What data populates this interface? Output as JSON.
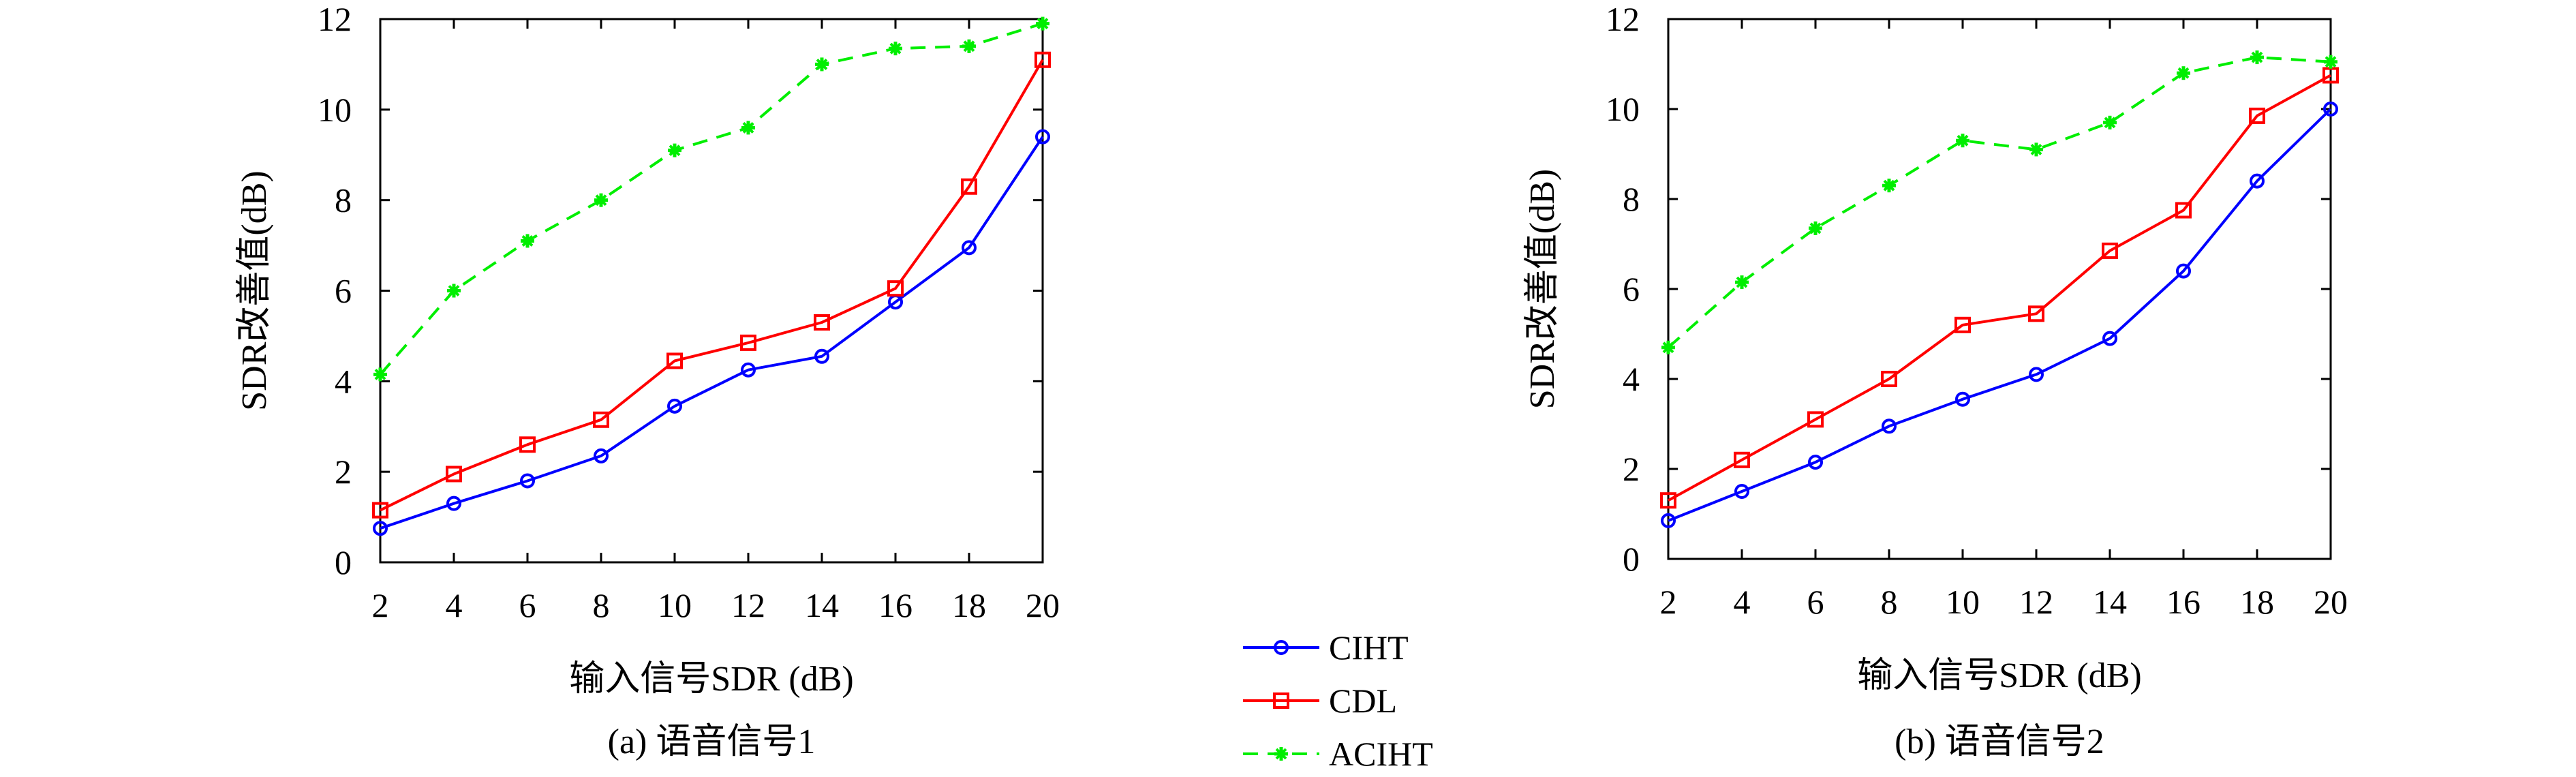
{
  "chart_data": [
    {
      "type": "line",
      "caption": "(a) 语音信号1",
      "xlabel": "输入信号SDR (dB)",
      "ylabel": "SDR改善值(dB)",
      "xlim": [
        2,
        20
      ],
      "ylim": [
        0,
        12
      ],
      "xticks": [
        2,
        4,
        6,
        8,
        10,
        12,
        14,
        16,
        18,
        20
      ],
      "yticks": [
        0,
        2,
        4,
        6,
        8,
        10,
        12
      ],
      "grid": false,
      "x": [
        2,
        4,
        6,
        8,
        10,
        12,
        14,
        16,
        18,
        20
      ],
      "series": [
        {
          "name": "CIHT",
          "color": "#0000ff",
          "marker": "circle",
          "dash": "solid",
          "values": [
            0.75,
            1.3,
            1.8,
            2.35,
            3.45,
            4.25,
            4.55,
            5.75,
            6.95,
            9.4
          ]
        },
        {
          "name": "CDL",
          "color": "#ff0000",
          "marker": "square",
          "dash": "solid",
          "values": [
            1.15,
            1.95,
            2.6,
            3.15,
            4.45,
            4.85,
            5.3,
            6.05,
            8.3,
            11.1
          ]
        },
        {
          "name": "ACIHT",
          "color": "#00ee00",
          "marker": "star",
          "dash": "dashed",
          "values": [
            4.15,
            6.0,
            7.1,
            8.0,
            9.1,
            9.6,
            11.0,
            11.35,
            11.4,
            11.9
          ]
        }
      ]
    },
    {
      "type": "line",
      "caption": "(b) 语音信号2",
      "xlabel": "输入信号SDR (dB)",
      "ylabel": "SDR改善值(dB)",
      "xlim": [
        2,
        20
      ],
      "ylim": [
        0,
        12
      ],
      "xticks": [
        2,
        4,
        6,
        8,
        10,
        12,
        14,
        16,
        18,
        20
      ],
      "yticks": [
        0,
        2,
        4,
        6,
        8,
        10,
        12
      ],
      "grid": false,
      "x": [
        2,
        4,
        6,
        8,
        10,
        12,
        14,
        16,
        18,
        20
      ],
      "series": [
        {
          "name": "CIHT",
          "color": "#0000ff",
          "marker": "circle",
          "dash": "solid",
          "values": [
            0.85,
            1.5,
            2.15,
            2.95,
            3.55,
            4.1,
            4.9,
            6.4,
            8.4,
            10.0
          ]
        },
        {
          "name": "CDL",
          "color": "#ff0000",
          "marker": "square",
          "dash": "solid",
          "values": [
            1.3,
            2.2,
            3.1,
            4.0,
            5.2,
            5.45,
            6.85,
            7.75,
            9.85,
            10.75
          ]
        },
        {
          "name": "ACIHT",
          "color": "#00ee00",
          "marker": "star",
          "dash": "dashed",
          "values": [
            4.7,
            6.15,
            7.35,
            8.3,
            9.3,
            9.1,
            9.7,
            10.8,
            11.15,
            11.05
          ]
        }
      ]
    }
  ],
  "legend": {
    "position": "bottom-center",
    "items": [
      {
        "label": "CIHT",
        "color": "#0000ff",
        "marker": "circle",
        "dash": "solid"
      },
      {
        "label": "CDL",
        "color": "#ff0000",
        "marker": "square",
        "dash": "solid"
      },
      {
        "label": "ACIHT",
        "color": "#00ee00",
        "marker": "star",
        "dash": "dashed"
      }
    ]
  }
}
